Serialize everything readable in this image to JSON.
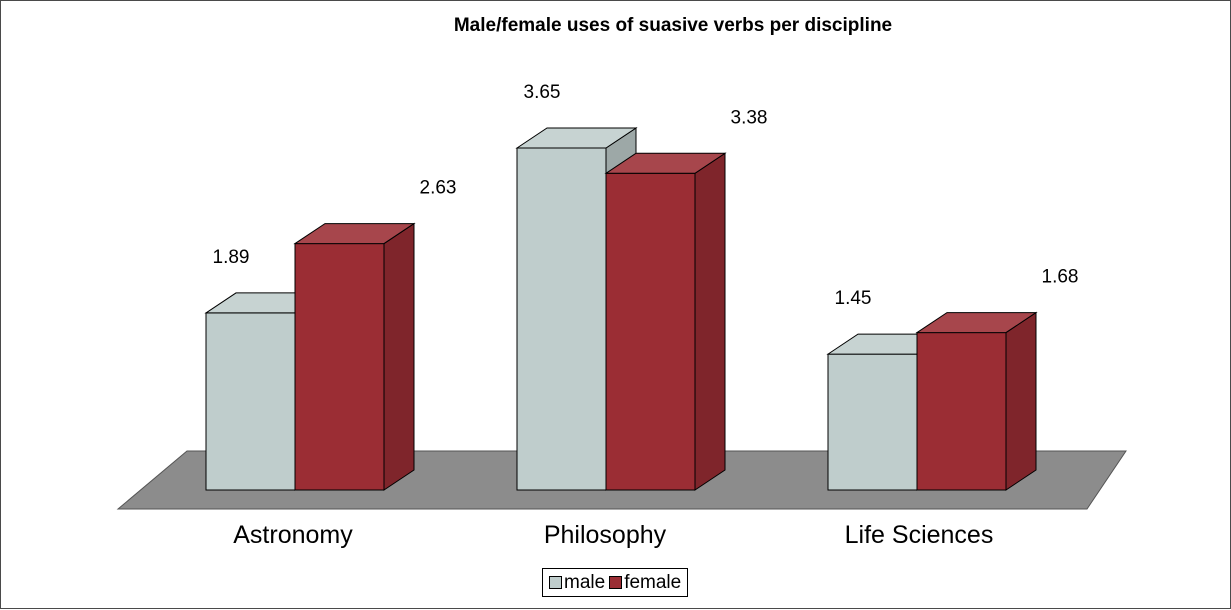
{
  "chart_data": {
    "type": "bar",
    "title": "Male/female uses of suasive verbs per discipline",
    "categories": [
      "Astronomy",
      "Philosophy",
      "Life Sciences"
    ],
    "series": [
      {
        "name": "male",
        "values": [
          1.89,
          3.65,
          1.45
        ],
        "labels": [
          "1.89",
          "3.65",
          "1.45"
        ],
        "color": "#bfcdcc"
      },
      {
        "name": "female",
        "values": [
          2.63,
          3.38,
          1.68
        ],
        "labels": [
          "2.63",
          "3.38",
          "1.68"
        ],
        "color": "#9b2d34"
      }
    ],
    "ylim": [
      0,
      4
    ],
    "grid": false,
    "legend_position": "bottom-center",
    "style": "3d-clustered-bar",
    "floor_color": "#8c8c8c"
  }
}
